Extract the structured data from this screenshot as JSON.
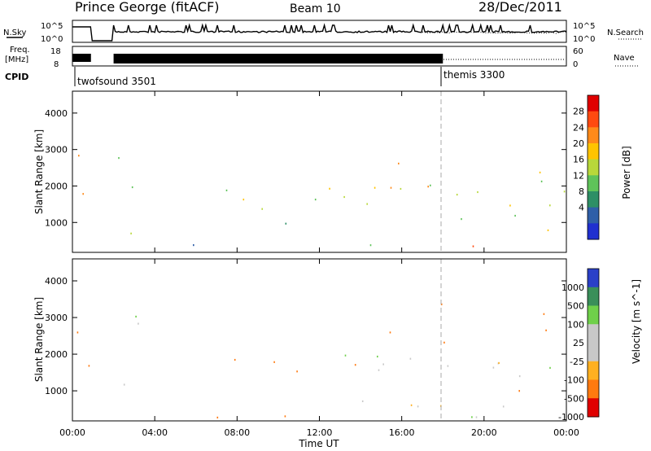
{
  "header": {
    "station": "Prince George (fitACF)",
    "beam": "Beam 10",
    "date": "28/Dec/2011"
  },
  "top_panels": {
    "nsky_label": "N.Sky",
    "nsky_ticks": [
      "10^5",
      "10^0"
    ],
    "nsearch_label": "N.Search",
    "nsearch_ticks": [
      "10^5",
      "10^0"
    ],
    "freq_label_1": "Freq.",
    "freq_label_2": "[MHz]",
    "freq_ticks": [
      "18",
      "8"
    ],
    "nave_label": "Nave",
    "nave_ticks": [
      "60",
      "0"
    ],
    "cpid_label": "CPID",
    "cpid_segments": [
      {
        "name": "twofsound 3501",
        "start_hour": 0
      },
      {
        "name": "themis 3300",
        "start_hour": 18
      }
    ]
  },
  "chart_data": [
    {
      "type": "heatmap",
      "title": "Power",
      "ylabel": "Slant Range [km]",
      "xlabel": "Time UT",
      "xlim_hours": [
        0,
        24
      ],
      "ylim": [
        180,
        4600
      ],
      "xticks": [
        "00:00",
        "04:00",
        "08:00",
        "12:00",
        "16:00",
        "20:00",
        "00:00"
      ],
      "yticks": [
        1000,
        2000,
        3000,
        4000
      ],
      "colorbar": {
        "label": "Power [dB]",
        "ticks": [
          "28",
          "24",
          "20",
          "16",
          "12",
          "8",
          "4"
        ],
        "colors": [
          "#e00000",
          "#ff4a10",
          "#ff8a1a",
          "#ffc400",
          "#b8d83a",
          "#5fc35a",
          "#2e8f66",
          "#2f5fa8",
          "#2030d0"
        ]
      },
      "regions": [
        {
          "t": [
            0.0,
            0.9
          ],
          "r": [
            1400,
            3100
          ],
          "v": 20
        },
        {
          "t": [
            0.3,
            0.8
          ],
          "r": [
            2100,
            2500
          ],
          "v": 27
        },
        {
          "t": [
            2.0,
            3.2
          ],
          "r": [
            600,
            3300
          ],
          "v": 10
        },
        {
          "t": [
            4.5,
            8.0
          ],
          "r": [
            1700,
            2000
          ],
          "v": 12
        },
        {
          "t": [
            8.0,
            14.0
          ],
          "r": [
            1200,
            2000
          ],
          "v": 16
        },
        {
          "t": [
            10.0,
            14.0
          ],
          "r": [
            900,
            1200
          ],
          "v": 5
        },
        {
          "t": [
            13.0,
            17.5
          ],
          "r": [
            1500,
            2600
          ],
          "v": 18
        },
        {
          "t": [
            15.0,
            18.0
          ],
          "r": [
            2500,
            3500
          ],
          "v": 22
        },
        {
          "t": [
            16.5,
            24.0
          ],
          "r": [
            1300,
            2500
          ],
          "v": 14
        },
        {
          "t": [
            18.5,
            24.0
          ],
          "r": [
            250,
            900
          ],
          "v": 27
        },
        {
          "t": [
            18.5,
            24.0
          ],
          "r": [
            800,
            1300
          ],
          "v": 14
        },
        {
          "t": [
            2.0,
            16.0
          ],
          "r": [
            200,
            500
          ],
          "v": 6
        }
      ]
    },
    {
      "type": "heatmap",
      "title": "Velocity",
      "ylabel": "Slant Range [km]",
      "xlabel": "Time UT",
      "xlim_hours": [
        0,
        24
      ],
      "ylim": [
        180,
        4600
      ],
      "xticks": [
        "00:00",
        "04:00",
        "08:00",
        "12:00",
        "16:00",
        "20:00",
        "00:00"
      ],
      "yticks": [
        1000,
        2000,
        3000,
        4000
      ],
      "colorbar": {
        "label": "Velocity [m s^-1]",
        "ticks": [
          "1000",
          "500",
          "100",
          "25",
          "-25",
          "-100",
          "-500",
          "-1000"
        ],
        "colors": [
          "#2a40c8",
          "#3a8f5a",
          "#6fd04a",
          "#c8c8c8",
          "#c8c8c8",
          "#ffb020",
          "#ff7a10",
          "#e00000"
        ]
      },
      "regions": [
        {
          "t": [
            0.0,
            0.9
          ],
          "r": [
            1400,
            3100
          ],
          "v": -300
        },
        {
          "t": [
            2.0,
            3.2
          ],
          "r": [
            600,
            1600
          ],
          "v": 0
        },
        {
          "t": [
            2.0,
            3.2
          ],
          "r": [
            1600,
            3300
          ],
          "v": 150
        },
        {
          "t": [
            4.5,
            8.0
          ],
          "r": [
            1500,
            1900
          ],
          "v": -200
        },
        {
          "t": [
            8.0,
            14.0
          ],
          "r": [
            1200,
            2000
          ],
          "v": -250
        },
        {
          "t": [
            13.0,
            17.5
          ],
          "r": [
            1500,
            2600
          ],
          "v": 120
        },
        {
          "t": [
            15.0,
            18.0
          ],
          "r": [
            2500,
            3500
          ],
          "v": -300
        },
        {
          "t": [
            14.0,
            24.0
          ],
          "r": [
            300,
            2300
          ],
          "v": 0
        },
        {
          "t": [
            18.0,
            23.5
          ],
          "r": [
            2300,
            3300
          ],
          "v": -250
        },
        {
          "t": [
            2.0,
            16.0
          ],
          "r": [
            200,
            400
          ],
          "v": -300
        }
      ]
    }
  ]
}
